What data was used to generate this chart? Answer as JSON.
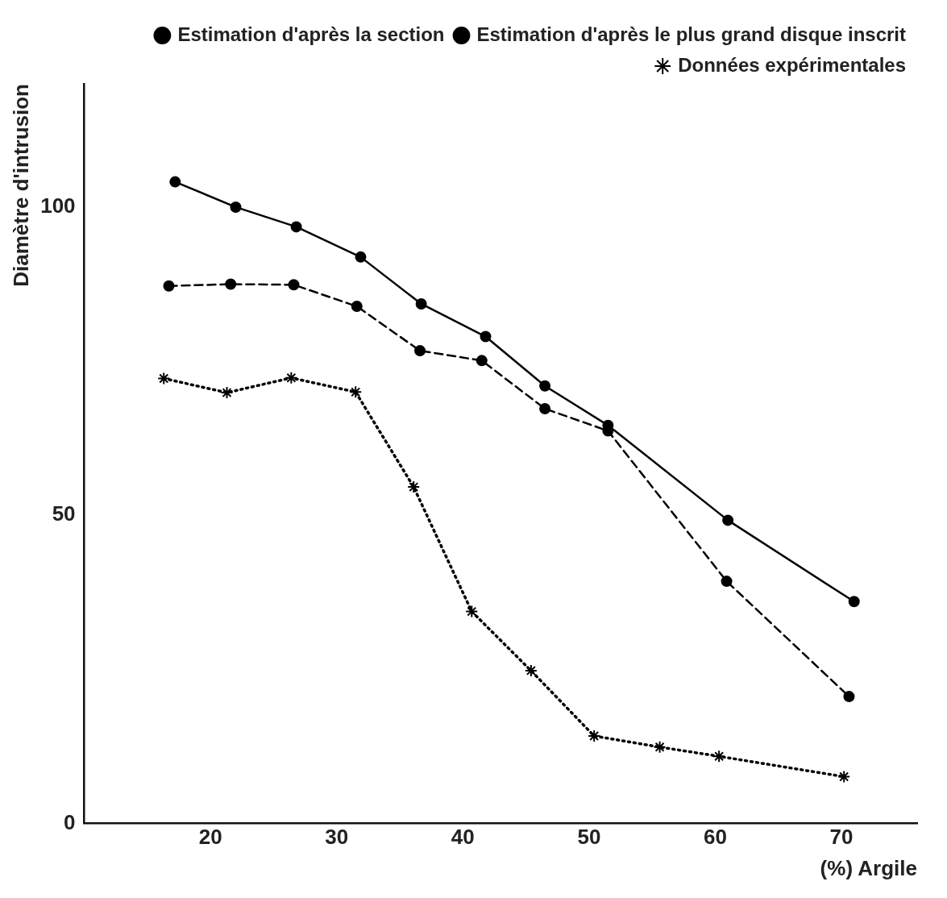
{
  "chart_data": {
    "type": "line",
    "xlabel": "(%) Argile",
    "ylabel": "Diamètre d'intrusion",
    "xlim": [
      10,
      76
    ],
    "xticks": [
      20,
      30,
      40,
      50,
      60,
      70
    ],
    "ylim": [
      0,
      120
    ],
    "yticks": [
      0,
      50,
      100
    ],
    "grid": false,
    "legend": "top right",
    "series": [
      {
        "name": "Estimation d'après la section",
        "color": "#000000",
        "marker": "circle",
        "line_style": "solid",
        "x": [
          17.2,
          22,
          26.8,
          31.9,
          36.7,
          41.8,
          46.5,
          51.5,
          61,
          71
        ],
        "values": [
          104.1,
          100,
          96.8,
          91.9,
          84.3,
          79,
          71,
          64.6,
          49.2,
          36
        ]
      },
      {
        "name": "Estimation d'après le plus grand disque inscrit",
        "color": "#000000",
        "marker": "circle",
        "line_style": "dashed",
        "x": [
          16.7,
          21.6,
          26.6,
          31.6,
          36.6,
          41.5,
          46.5,
          51.5,
          60.9,
          70.6
        ],
        "values": [
          87.2,
          87.5,
          87.4,
          83.9,
          76.7,
          75.1,
          67.3,
          63.7,
          39.3,
          20.6
        ]
      },
      {
        "name": "Données expérimentales",
        "color": "#000000",
        "marker": "cross",
        "line_style": "dotted",
        "x": [
          16.3,
          21.3,
          26.4,
          31.5,
          36.1,
          40.7,
          45.4,
          50.4,
          55.6,
          60.3,
          70.2
        ],
        "values": [
          72.2,
          69.9,
          72.3,
          70,
          54.6,
          34.4,
          24.8,
          14.2,
          12.4,
          10.9,
          7.6
        ]
      }
    ]
  }
}
